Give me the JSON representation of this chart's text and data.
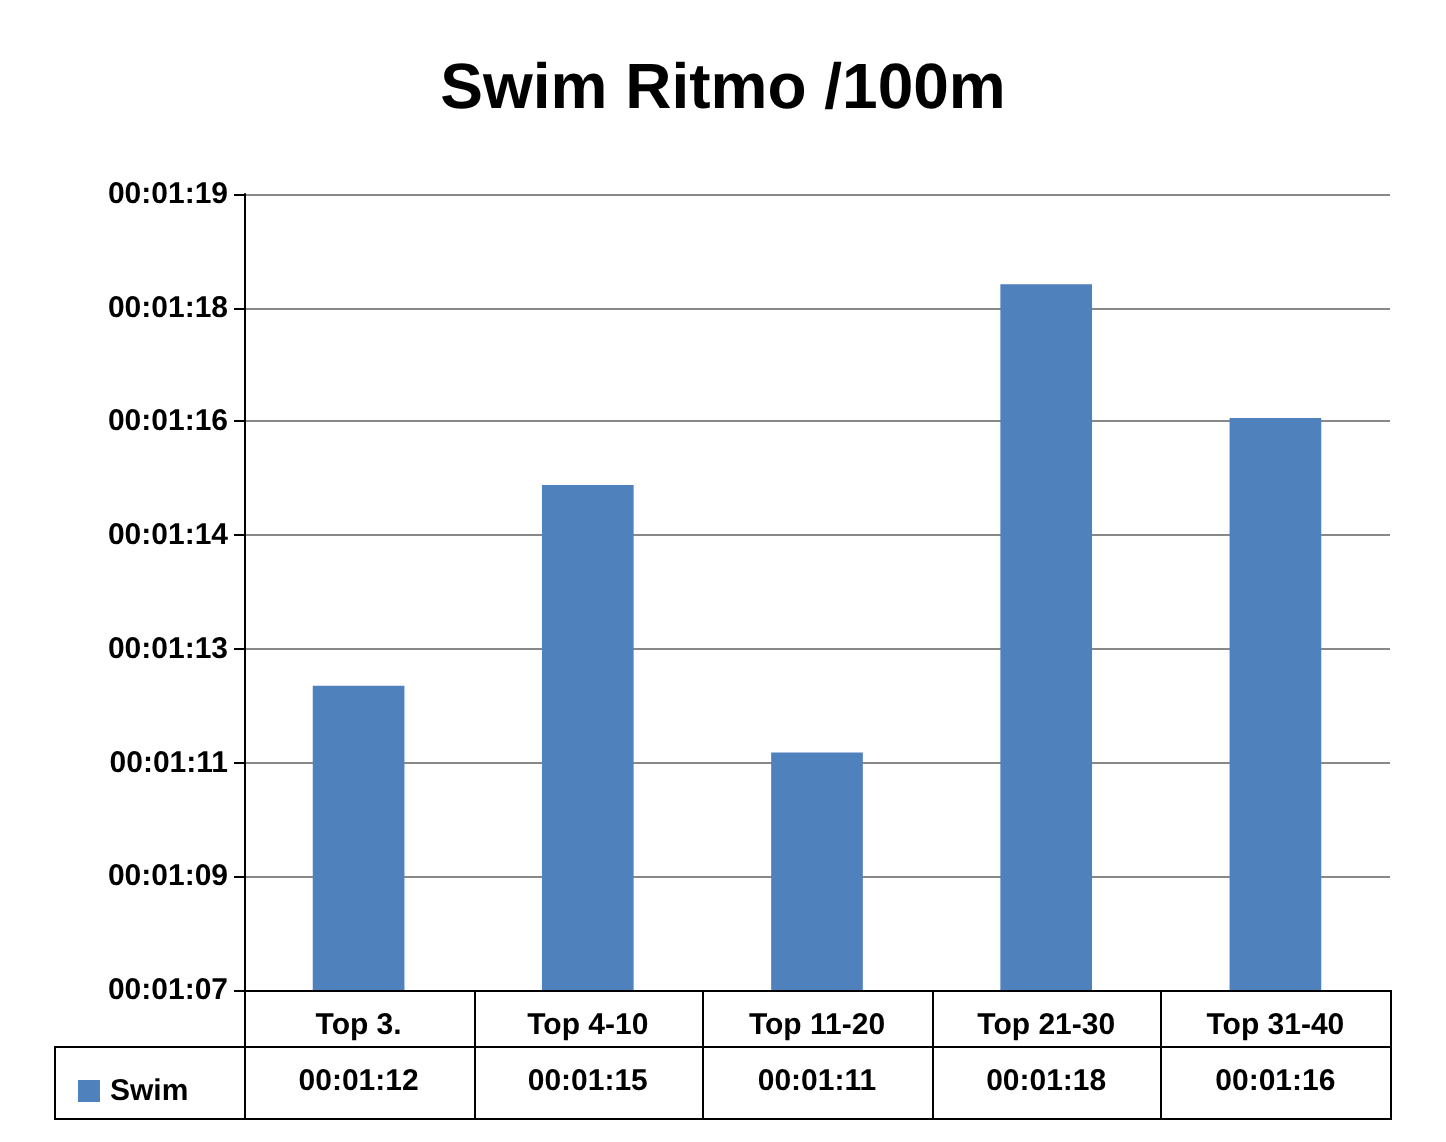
{
  "chart_data": {
    "type": "bar",
    "title": "Swim Ritmo /100m",
    "categories": [
      "Top 3.",
      "Top 4-10",
      "Top 11-20",
      "Top 21-30",
      "Top 31-40"
    ],
    "series": [
      {
        "name": "Swim",
        "color": "#4f81bd",
        "values": [
          72,
          75,
          71,
          78,
          76
        ],
        "value_labels": [
          "00:01:12",
          "00:01:15",
          "00:01:11",
          "00:01:18",
          "00:01:16"
        ]
      }
    ],
    "ylim": [
      67.45,
      79.35
    ],
    "yticks": [
      {
        "value": 67.45,
        "label": "00:01:07"
      },
      {
        "value": 69.15,
        "label": "00:01:09"
      },
      {
        "value": 70.85,
        "label": "00:01:11"
      },
      {
        "value": 72.55,
        "label": "00:01:13"
      },
      {
        "value": 74.25,
        "label": "00:01:14"
      },
      {
        "value": 75.95,
        "label": "00:01:16"
      },
      {
        "value": 77.65,
        "label": "00:01:18"
      },
      {
        "value": 79.35,
        "label": "00:01:19"
      }
    ],
    "grid": "y",
    "legend": "bottom left"
  }
}
